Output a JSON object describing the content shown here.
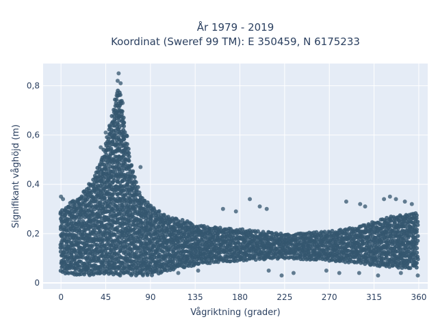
{
  "chart_data": {
    "type": "scatter",
    "title": "År 1979 - 2019",
    "subtitle": "Koordinat (Sweref 99 TM): E 350459, N 6175233",
    "xlabel": "Vågriktning (grader)",
    "ylabel": "Signifikant våghöjd (m)",
    "xlim": [
      -18,
      369
    ],
    "ylim": [
      -0.025,
      0.89
    ],
    "xticks": [
      0,
      45,
      90,
      135,
      180,
      225,
      270,
      315,
      360
    ],
    "xtick_labels": [
      "0",
      "45",
      "90",
      "135",
      "180",
      "225",
      "270",
      "315",
      "360"
    ],
    "yticks": [
      0,
      0.2,
      0.4,
      0.6,
      0.8
    ],
    "ytick_labels": [
      "0",
      "0,2",
      "0,4",
      "0,6",
      "0,8"
    ],
    "grid": true,
    "marker_color": "#34566e",
    "plot_background": "#e5ecf6",
    "envelope": {
      "x": [
        0,
        10,
        20,
        30,
        40,
        45,
        50,
        55,
        58,
        60,
        65,
        70,
        75,
        80,
        90,
        100,
        110,
        120,
        135,
        150,
        180,
        225,
        270,
        300,
        315,
        330,
        345,
        360
      ],
      "lower": [
        0.04,
        0.035,
        0.03,
        0.03,
        0.03,
        0.03,
        0.03,
        0.03,
        0.03,
        0.03,
        0.03,
        0.03,
        0.03,
        0.03,
        0.03,
        0.04,
        0.05,
        0.06,
        0.07,
        0.08,
        0.09,
        0.1,
        0.09,
        0.08,
        0.07,
        0.06,
        0.06,
        0.06
      ],
      "upper": [
        0.3,
        0.33,
        0.36,
        0.41,
        0.5,
        0.57,
        0.66,
        0.76,
        0.8,
        0.77,
        0.63,
        0.5,
        0.42,
        0.36,
        0.32,
        0.29,
        0.27,
        0.26,
        0.24,
        0.23,
        0.22,
        0.2,
        0.21,
        0.23,
        0.25,
        0.27,
        0.28,
        0.29
      ]
    },
    "outliers": [
      {
        "x": 58,
        "y": 0.85
      },
      {
        "x": 57,
        "y": 0.82
      },
      {
        "x": 60,
        "y": 0.81
      },
      {
        "x": 56,
        "y": 0.76
      },
      {
        "x": 62,
        "y": 0.73
      },
      {
        "x": 45,
        "y": 0.61
      },
      {
        "x": 40,
        "y": 0.55
      },
      {
        "x": 80,
        "y": 0.47
      },
      {
        "x": 0,
        "y": 0.35
      },
      {
        "x": 2,
        "y": 0.34
      },
      {
        "x": 163,
        "y": 0.3
      },
      {
        "x": 176,
        "y": 0.29
      },
      {
        "x": 190,
        "y": 0.34
      },
      {
        "x": 200,
        "y": 0.31
      },
      {
        "x": 207,
        "y": 0.3
      },
      {
        "x": 287,
        "y": 0.33
      },
      {
        "x": 301,
        "y": 0.32
      },
      {
        "x": 306,
        "y": 0.31
      },
      {
        "x": 325,
        "y": 0.34
      },
      {
        "x": 331,
        "y": 0.35
      },
      {
        "x": 337,
        "y": 0.34
      },
      {
        "x": 346,
        "y": 0.33
      },
      {
        "x": 353,
        "y": 0.32
      },
      {
        "x": 209,
        "y": 0.05
      },
      {
        "x": 222,
        "y": 0.03
      },
      {
        "x": 234,
        "y": 0.04
      },
      {
        "x": 267,
        "y": 0.05
      },
      {
        "x": 280,
        "y": 0.04
      },
      {
        "x": 300,
        "y": 0.04
      },
      {
        "x": 319,
        "y": 0.03
      },
      {
        "x": 342,
        "y": 0.04
      },
      {
        "x": 359,
        "y": 0.03
      },
      {
        "x": 118,
        "y": 0.04
      },
      {
        "x": 138,
        "y": 0.05
      }
    ]
  }
}
